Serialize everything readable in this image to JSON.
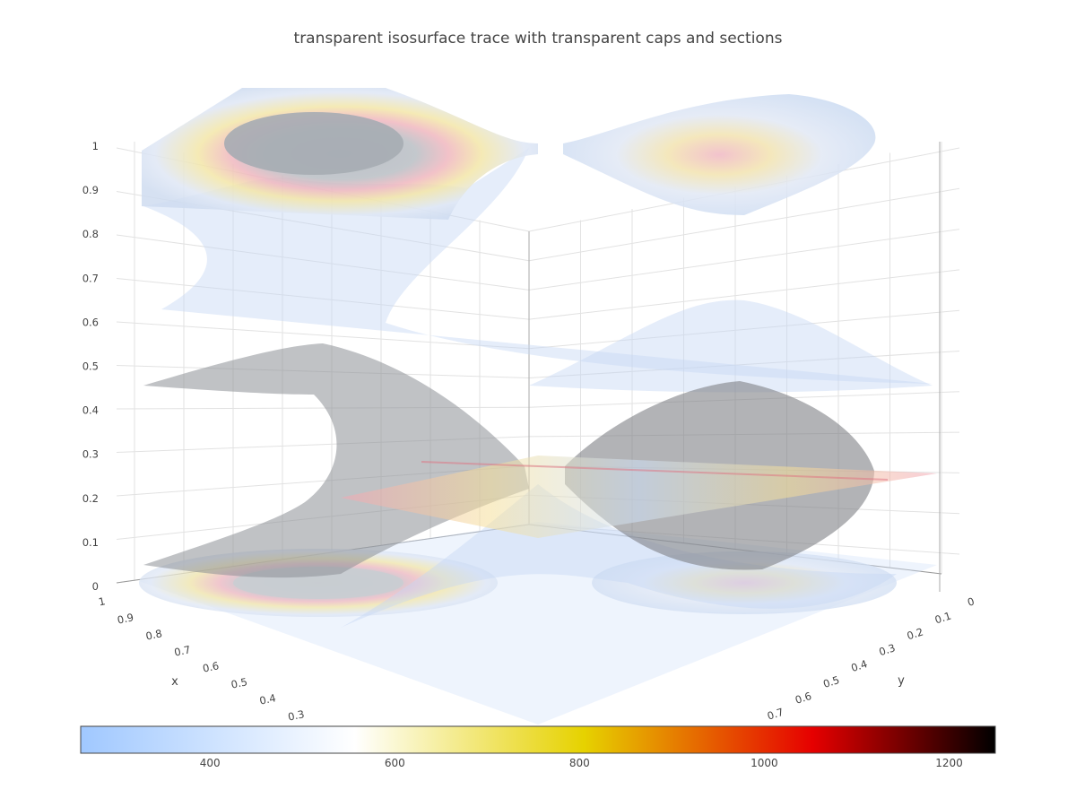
{
  "title": "transparent isosurface trace with transparent caps and sections",
  "chart_data": {
    "type": "isosurface",
    "title": "transparent isosurface trace with transparent caps and sections",
    "axes": {
      "x": {
        "label": "x",
        "ticks": [
          "1",
          "0.9",
          "0.8",
          "0.7",
          "0.6",
          "0.5",
          "0.4",
          "0.3"
        ]
      },
      "y": {
        "label": "y",
        "ticks": [
          "0",
          "0.1",
          "0.2",
          "0.3",
          "0.4",
          "0.5",
          "0.6",
          "0.7"
        ]
      },
      "z": {
        "label": "",
        "ticks": [
          "0",
          "0.1",
          "0.2",
          "0.3",
          "0.4",
          "0.5",
          "0.6",
          "0.7",
          "0.8",
          "0.9",
          "1"
        ]
      }
    },
    "isosurfaces": [
      {
        "name": "",
        "fill_color": "#9fa6b0",
        "opacity": 0.45
      },
      {
        "name": "",
        "fill_color": "#c4d8f2",
        "opacity": 0.5
      }
    ],
    "slices": [
      {
        "name": "",
        "axis": "z",
        "value": 0.23
      }
    ],
    "colorbar": {
      "min": 260,
      "max": 1250,
      "ticks": [
        400,
        600,
        800,
        1000,
        1200
      ],
      "colorscale": [
        [
          0.0,
          "#a0c8ff"
        ],
        [
          0.3,
          "#ffffff"
        ],
        [
          0.55,
          "#e6d200"
        ],
        [
          0.8,
          "#e60000"
        ],
        [
          1.0,
          "#000000"
        ]
      ]
    },
    "grid": true
  }
}
